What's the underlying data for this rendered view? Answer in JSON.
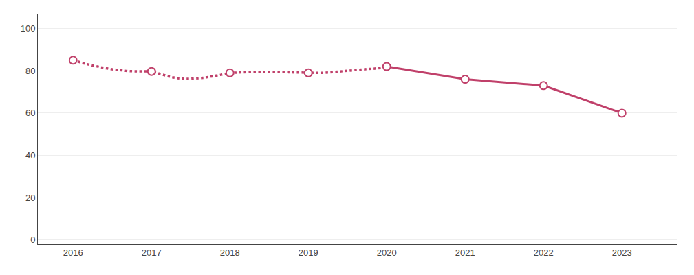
{
  "chart_data": {
    "type": "line",
    "x": [
      2016.0,
      2016.083,
      2016.167,
      2016.25,
      2016.333,
      2016.417,
      2016.5,
      2016.583,
      2016.667,
      2016.75,
      2016.833,
      2016.917,
      2017.0,
      2017.083,
      2017.167,
      2017.25,
      2017.333,
      2017.417,
      2017.5,
      2017.583,
      2017.667,
      2017.75,
      2017.833,
      2017.917,
      2018.0,
      2018.083,
      2018.167,
      2018.25,
      2018.333,
      2018.417,
      2018.5,
      2018.583,
      2018.667,
      2018.75,
      2018.833,
      2018.917,
      2019.0,
      2019.083,
      2019.167,
      2019.25,
      2019.333,
      2019.417,
      2019.5,
      2019.583,
      2019.667,
      2019.75,
      2019.833,
      2019.917,
      2020.0,
      2021.0,
      2022.0,
      2023.0
    ],
    "series": [
      {
        "color": "#c0406a",
        "line_style": "dotted",
        "values": [
          85,
          84.0,
          83.2,
          82.5,
          81.8,
          81.2,
          80.7,
          80.3,
          80.0,
          79.8,
          79.7,
          79.7,
          79.7,
          78.8,
          77.8,
          77.0,
          76.5,
          76.2,
          76.2,
          76.4,
          76.7,
          77.2,
          77.7,
          78.3,
          79.0,
          79.2,
          79.3,
          79.4,
          79.5,
          79.5,
          79.5,
          79.5,
          79.4,
          79.3,
          79.2,
          79.1,
          79.0,
          79.0,
          79.0,
          79.2,
          79.5,
          79.8,
          80.0,
          80.3,
          80.6,
          80.8,
          81.0,
          81.3,
          82.0,
          null,
          null,
          null
        ]
      },
      {
        "color": "#c0406a",
        "line_style": "solid",
        "values": [
          null,
          null,
          null,
          null,
          null,
          null,
          null,
          null,
          null,
          null,
          null,
          null,
          null,
          null,
          null,
          null,
          null,
          null,
          null,
          null,
          null,
          null,
          null,
          null,
          null,
          null,
          null,
          null,
          null,
          null,
          null,
          null,
          null,
          null,
          null,
          null,
          null,
          null,
          null,
          null,
          null,
          null,
          null,
          null,
          null,
          null,
          null,
          null,
          82.0,
          76.0,
          73.0,
          60.0
        ]
      },
      {
        "type": "scatter",
        "marker": "open circle",
        "color": "#c0406a",
        "values": [
          85,
          null,
          null,
          null,
          null,
          null,
          null,
          null,
          null,
          null,
          null,
          null,
          79.7,
          null,
          null,
          null,
          null,
          null,
          null,
          null,
          null,
          null,
          null,
          null,
          79.0,
          null,
          null,
          null,
          null,
          null,
          null,
          null,
          null,
          null,
          null,
          null,
          79.0,
          null,
          null,
          null,
          null,
          null,
          null,
          null,
          null,
          null,
          null,
          null,
          82.0,
          null,
          null,
          null
        ]
      },
      {
        "type": "scatter",
        "marker": "open circle",
        "color": "#c0406a",
        "values": [
          null,
          null,
          null,
          null,
          null,
          null,
          null,
          null,
          null,
          null,
          null,
          null,
          null,
          null,
          null,
          null,
          null,
          null,
          null,
          null,
          null,
          null,
          null,
          null,
          null,
          null,
          null,
          null,
          null,
          null,
          null,
          null,
          null,
          null,
          null,
          null,
          null,
          null,
          null,
          null,
          null,
          null,
          null,
          null,
          null,
          null,
          null,
          null,
          null,
          76.0,
          73.0,
          60.0
        ]
      }
    ],
    "xlim": [
      2015.55,
      2023.7
    ],
    "xticks": [
      2016,
      2017,
      2018,
      2019,
      2020,
      2021,
      2022,
      2023
    ],
    "ylim": [
      -2,
      107
    ],
    "yticks": [
      0,
      20,
      40,
      60,
      80,
      100
    ],
    "grid": true
  }
}
